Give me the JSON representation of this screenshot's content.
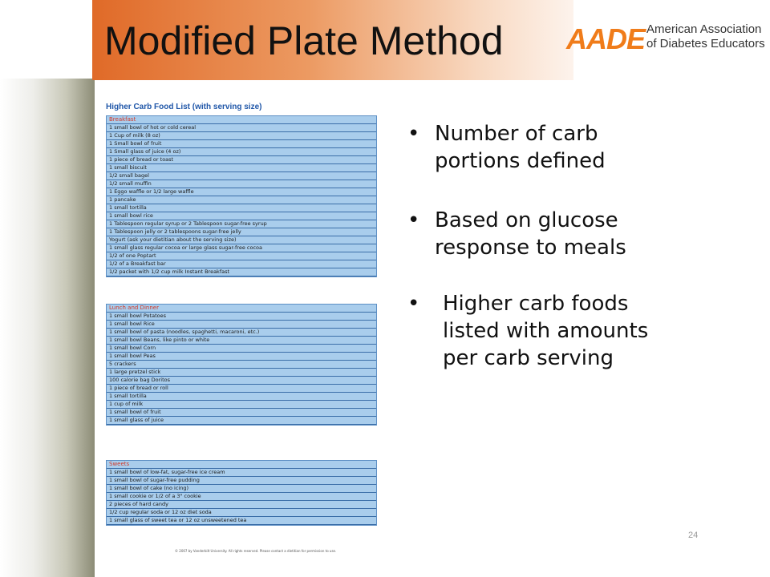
{
  "slide": {
    "title": "Modified Plate Method",
    "page_number": "24"
  },
  "logo": {
    "mark": "AADE",
    "line1": "American Association",
    "line2": "of Diabetes Educators"
  },
  "food_list": {
    "title": "Higher Carb Food List (with serving size)",
    "sections": [
      {
        "name": "Breakfast",
        "items": [
          "1 small bowl of hot or cold cereal",
          "1 Cup of milk (8 oz)",
          "1 Small bowl of fruit",
          "1 Small glass of juice (4 oz)",
          "1 piece of bread or toast",
          "1 small biscuit",
          "1/2 small bagel",
          "1/2 small muffin",
          "1 Eggo waffle or 1/2 large waffle",
          "1 pancake",
          "1 small tortilla",
          "1 small bowl rice",
          "1 Tablespoon regular syrup or 2 Tablespoon sugar-free syrup",
          "1 Tablespoon jelly or 2 tablespoons sugar-free jelly",
          "Yogurt (ask your dietitian about the serving size)",
          "1 small glass regular cocoa or large glass sugar-free cocoa",
          "1/2 of one Poptart",
          "1/2 of a Breakfast bar",
          "1/2 packet with 1/2 cup milk Instant Breakfast"
        ]
      },
      {
        "name": "Lunch and Dinner",
        "items": [
          "1 small bowl Potatoes",
          "1 small bowl Rice",
          "1 small bowl of pasta (noodles, spaghetti, macaroni, etc.)",
          "1 small bowl Beans, like pinto or white",
          "1 small bowl Corn",
          "1 small bowl Peas",
          "5 crackers",
          "1 large pretzel stick",
          "100 calorie bag Doritos",
          "1 piece of bread or roll",
          "1 small tortilla",
          "1 cup of milk",
          "1 small bowl of fruit",
          "1 small glass of juice"
        ]
      },
      {
        "name": "Sweets",
        "items": [
          "1 small bowl of low-fat, sugar-free ice cream",
          "1 small bowl of sugar-free pudding",
          "1 small bowl of cake (no icing)",
          "1 small cookie or 1/2 of a 3\" cookie",
          "2 pieces of hard candy",
          "1/2 cup regular soda or 12 oz diet soda",
          "1 small glass of sweet tea or 12 oz unsweetened tea"
        ]
      }
    ],
    "copyright": "© 2007 by Vanderbilt University. All rights reserved. Please contact a dietitian for permission to use."
  },
  "bullets": [
    {
      "line1": "Number of carb",
      "line2": "portions defined"
    },
    {
      "line1": "Based on glucose",
      "line2": "response to meals"
    },
    {
      "line1": "Higher carb foods",
      "line2": "listed with amounts",
      "line3": "per carb serving"
    }
  ],
  "colors": {
    "title_band": "#e06a28",
    "logo_accent": "#f07c1a",
    "list_fill": "#a9cdec",
    "list_lines": "#3b6ea8",
    "section_header": "#d23a2a",
    "list_title": "#1f56a8"
  }
}
